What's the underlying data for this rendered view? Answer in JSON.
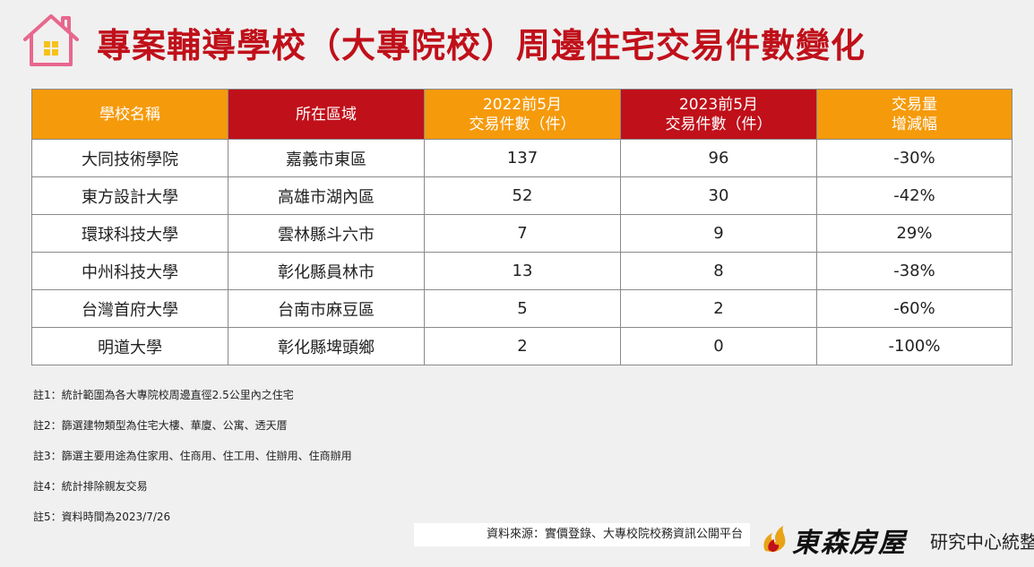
{
  "title": "專案輔導學校（大專院校）周邊住宅交易件數變化",
  "colors": {
    "title_red": "#c0101a",
    "header_orange": "#f59a0a",
    "header_red": "#c0101a"
  },
  "table": {
    "headers": [
      {
        "line1": "學校名稱",
        "line2": ""
      },
      {
        "line1": "所在區域",
        "line2": ""
      },
      {
        "line1": "2022前5月",
        "line2": "交易件數（件）"
      },
      {
        "line1": "2023前5月",
        "line2": "交易件數（件）"
      },
      {
        "line1": "交易量",
        "line2": "增減幅"
      }
    ],
    "rows": [
      [
        "大同技術學院",
        "嘉義市東區",
        "137",
        "96",
        "-30%"
      ],
      [
        "東方設計大學",
        "高雄市湖內區",
        "52",
        "30",
        "-42%"
      ],
      [
        "環球科技大學",
        "雲林縣斗六市",
        "7",
        "9",
        "29%"
      ],
      [
        "中州科技大學",
        "彰化縣員林市",
        "13",
        "8",
        "-38%"
      ],
      [
        "台灣首府大學",
        "台南市麻豆區",
        "5",
        "2",
        "-60%"
      ],
      [
        "明道大學",
        "彰化縣埤頭鄉",
        "2",
        "0",
        "-100%"
      ]
    ]
  },
  "notes": [
    "註1：統計範圍為各大專院校周邊直徑2.5公里內之住宅",
    "註2：篩選建物類型為住宅大樓、華廈、公寓、透天厝",
    "註3：篩選主要用途為住家用、住商用、住工用、住辦用、住商辦用",
    "註4：統計排除親友交易",
    "註5：資料時間為2023/7/26"
  ],
  "source": "資料來源：實價登錄、大專校院校務資訊公開平台",
  "logo": {
    "name": "東森房屋",
    "sub": "研究中心統整",
    "mark_icon": "flame-logo-icon"
  }
}
